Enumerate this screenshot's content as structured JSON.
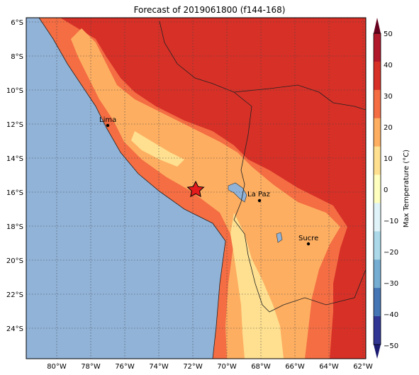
{
  "title": "Forecast of 2019061800 (f144-168)",
  "map": {
    "lat_labels": [
      "6°S",
      "8°S",
      "10°S",
      "12°S",
      "14°S",
      "16°S",
      "18°S",
      "20°S",
      "22°S",
      "24°S"
    ],
    "lon_labels": [
      "80°W",
      "78°W",
      "76°W",
      "74°W",
      "72°W",
      "70°W",
      "68°W",
      "66°W",
      "64°W",
      "62°W"
    ],
    "grid": "dotted",
    "colors": {
      "ocean": "#91b3d8",
      "lake": "#91b3d8",
      "hot_40": "#d73027",
      "warm_30": "#f46d43",
      "mild_20": "#fdae61",
      "cool_10": "#fee090"
    },
    "cities": [
      {
        "name": "Lima"
      },
      {
        "name": "La Paz"
      },
      {
        "name": "Sucre"
      }
    ],
    "marker": "star"
  },
  "colorbar": {
    "label": "Max Temperature (°C)",
    "ticks": [
      "50",
      "40",
      "30",
      "20",
      "10",
      "0",
      "−10",
      "−20",
      "−30",
      "−40",
      "−50"
    ],
    "colors": [
      "#67001f",
      "#b2182b",
      "#d73027",
      "#f46d43",
      "#fdae61",
      "#fee090",
      "#ffffbf",
      "#e0f3f8",
      "#abd9e9",
      "#74add1",
      "#4575b4",
      "#313695",
      "#1a1a70"
    ]
  }
}
